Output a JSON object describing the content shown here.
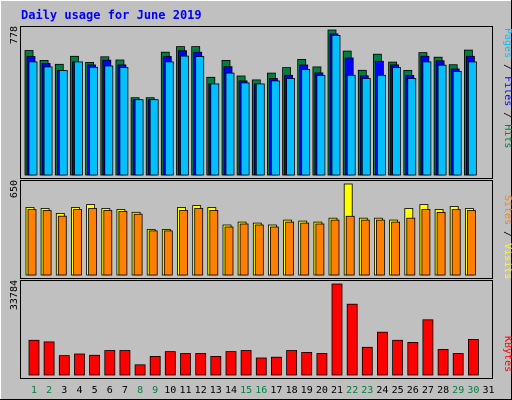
{
  "title": "Daily usage for June 2019",
  "colors": {
    "background": "#c0c0c0",
    "title": "#0000ff",
    "hits": "#008040",
    "files": "#0000ff",
    "pages": "#00c0ff",
    "visits": "#ffff00",
    "sites": "#ff8000",
    "kbytes": "#ff0000",
    "weekend_day_label": "#008040",
    "weekday_day_label": "#000000"
  },
  "chart_data": [
    {
      "type": "bar",
      "panel": "hits-files-pages",
      "ymax_label": "778",
      "legend": [
        "Pages",
        "Files",
        "Hits"
      ],
      "ylim": [
        0,
        778
      ],
      "categories": [
        "1",
        "2",
        "3",
        "4",
        "5",
        "6",
        "7",
        "8",
        "9",
        "10",
        "11",
        "12",
        "13",
        "14",
        "15",
        "16",
        "17",
        "18",
        "19",
        "20",
        "21",
        "22",
        "23",
        "24",
        "25",
        "26",
        "27",
        "28",
        "29",
        "30"
      ],
      "series": [
        {
          "name": "Hits",
          "values": [
            668,
            615,
            594,
            637,
            604,
            634,
            617,
            415,
            415,
            659,
            689,
            689,
            524,
            615,
            531,
            510,
            547,
            576,
            620,
            580,
            778,
            665,
            562,
            648,
            606,
            561,
            657,
            632,
            592,
            670
          ]
        },
        {
          "name": "Files",
          "values": [
            636,
            598,
            560,
            607,
            590,
            616,
            591,
            404,
            404,
            636,
            667,
            659,
            489,
            581,
            505,
            489,
            518,
            535,
            590,
            548,
            757,
            628,
            532,
            610,
            591,
            534,
            637,
            613,
            569,
            637
          ]
        },
        {
          "name": "Pages",
          "values": [
            607,
            580,
            560,
            607,
            578,
            585,
            577,
            404,
            404,
            607,
            638,
            636,
            489,
            547,
            494,
            489,
            505,
            518,
            566,
            534,
            749,
            535,
            518,
            535,
            576,
            518,
            607,
            589,
            556,
            607
          ]
        }
      ]
    },
    {
      "type": "bar",
      "panel": "visits-sites",
      "ymax_label": "650",
      "legend": [
        "Sites",
        "Visits"
      ],
      "ylim": [
        0,
        650
      ],
      "categories": [
        "1",
        "2",
        "3",
        "4",
        "5",
        "6",
        "7",
        "8",
        "9",
        "10",
        "11",
        "12",
        "13",
        "14",
        "15",
        "16",
        "17",
        "18",
        "19",
        "20",
        "21",
        "22",
        "23",
        "24",
        "25",
        "26",
        "27",
        "28",
        "29",
        "30"
      ],
      "series": [
        {
          "name": "Visits",
          "values": [
            482,
            475,
            440,
            482,
            503,
            475,
            468,
            448,
            325,
            325,
            482,
            496,
            482,
            357,
            378,
            371,
            357,
            392,
            385,
            378,
            406,
            650,
            406,
            406,
            392,
            475,
            503,
            468,
            489,
            475
          ]
        },
        {
          "name": "Sites",
          "values": [
            468,
            461,
            420,
            468,
            475,
            461,
            454,
            434,
            315,
            315,
            461,
            475,
            461,
            343,
            364,
            357,
            343,
            378,
            371,
            364,
            392,
            419,
            392,
            392,
            378,
            406,
            468,
            447,
            468,
            461
          ]
        }
      ]
    },
    {
      "type": "bar",
      "panel": "kbytes",
      "ymax_label": "33784",
      "legend": [
        "KBytes"
      ],
      "ylim": [
        0,
        33784
      ],
      "categories": [
        "1",
        "2",
        "3",
        "4",
        "5",
        "6",
        "7",
        "8",
        "9",
        "10",
        "11",
        "12",
        "13",
        "14",
        "15",
        "16",
        "17",
        "18",
        "19",
        "20",
        "21",
        "22",
        "23",
        "24",
        "25",
        "26",
        "27",
        "28",
        "29",
        "30"
      ],
      "series": [
        {
          "name": "KBytes",
          "values": [
            12900,
            12300,
            7200,
            7800,
            7300,
            9100,
            9100,
            3800,
            6900,
            8700,
            8000,
            8000,
            6900,
            8700,
            9100,
            6300,
            6600,
            9100,
            8400,
            8000,
            33784,
            26300,
            10300,
            15900,
            12900,
            12100,
            20500,
            9500,
            8000,
            13200
          ]
        }
      ]
    }
  ],
  "x_axis": {
    "days": [
      "1",
      "2",
      "3",
      "4",
      "5",
      "6",
      "7",
      "8",
      "9",
      "10",
      "11",
      "12",
      "13",
      "14",
      "15",
      "16",
      "17",
      "18",
      "19",
      "20",
      "21",
      "22",
      "23",
      "24",
      "25",
      "26",
      "27",
      "28",
      "29",
      "30",
      "31"
    ],
    "weekend_days": [
      "1",
      "2",
      "8",
      "9",
      "15",
      "16",
      "22",
      "23",
      "29",
      "30"
    ]
  }
}
